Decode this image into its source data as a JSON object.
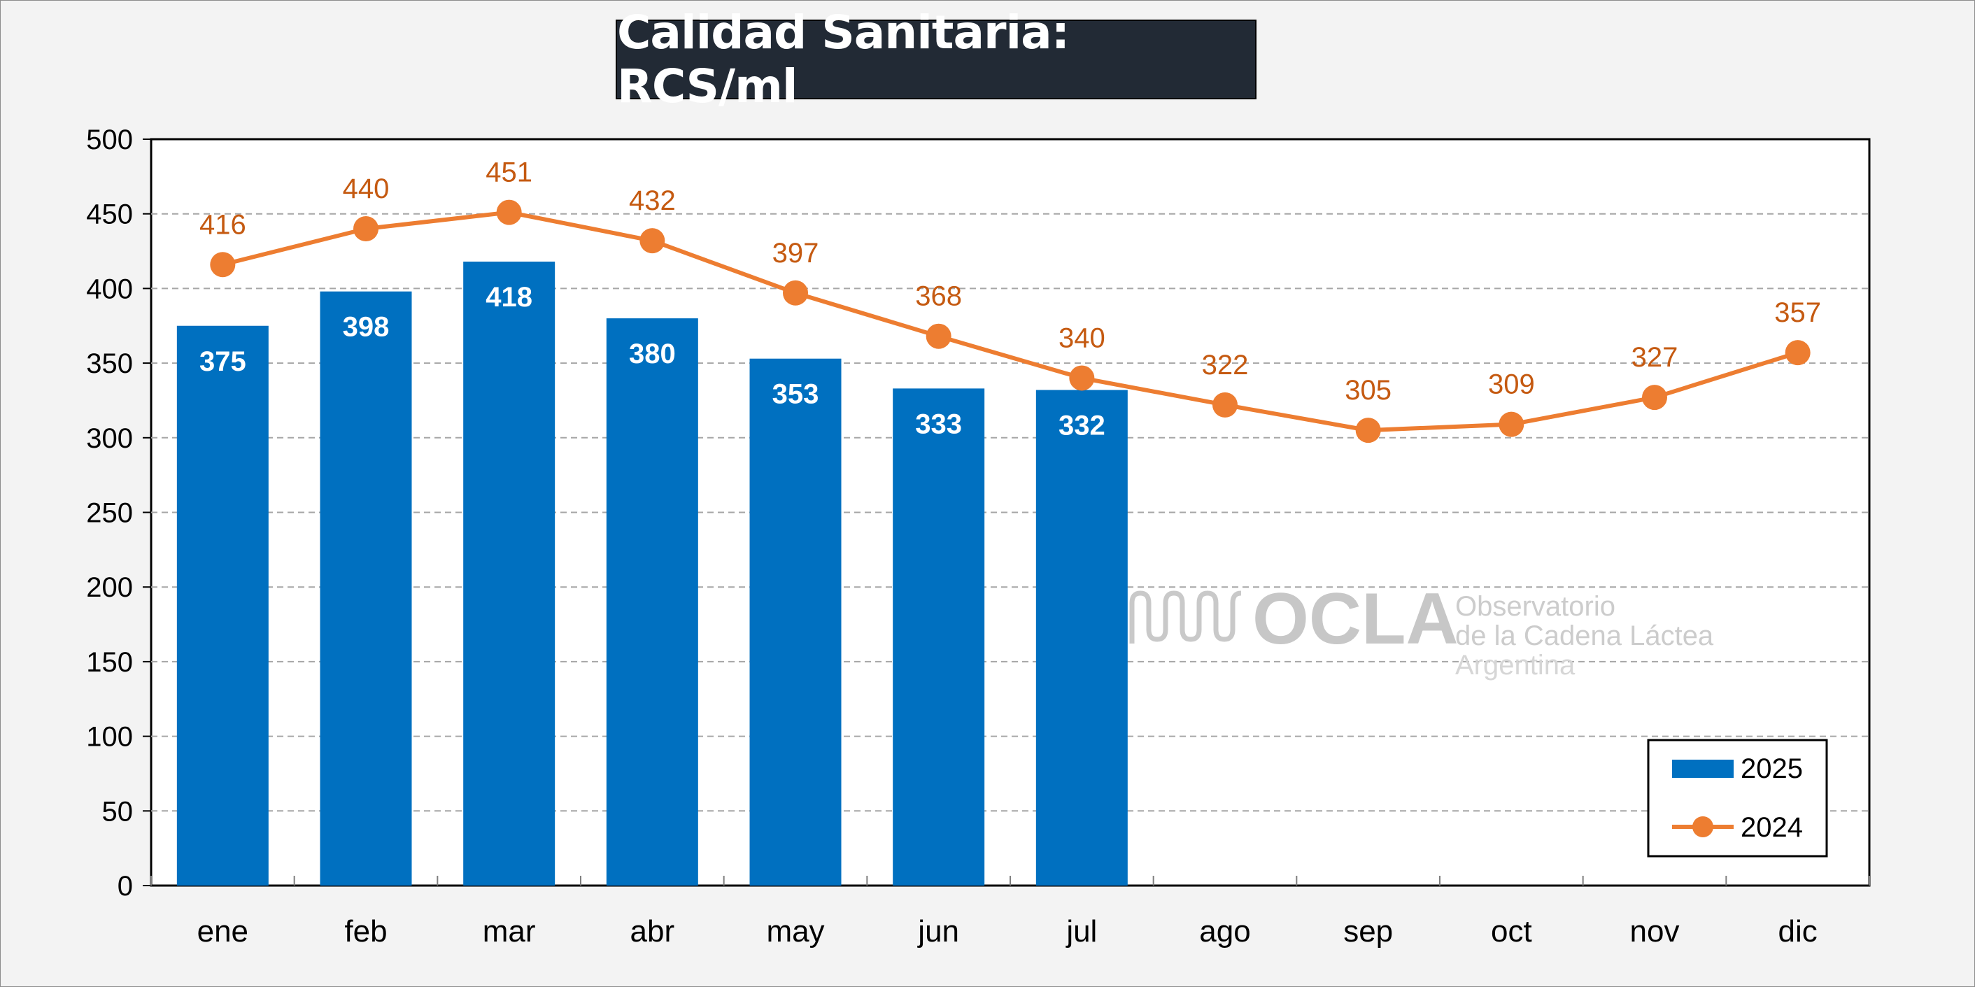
{
  "title": "Calidad Sanitaria: RCS/ml",
  "watermark": {
    "logo": "OCLA",
    "line1": "Observatorio",
    "line2": "de la Cadena Láctea",
    "line3": "Argentina"
  },
  "colors": {
    "bar": "#0070c0",
    "line": "#ed7d31",
    "line_label": "#c55a11",
    "bar_label": "#ffffff",
    "title_bg": "#222a35"
  },
  "chart_data": {
    "type": "bar",
    "title": "Calidad Sanitaria: RCS/ml",
    "categories": [
      "ene",
      "feb",
      "mar",
      "abr",
      "may",
      "jun",
      "jul",
      "ago",
      "sep",
      "oct",
      "nov",
      "dic"
    ],
    "series": [
      {
        "name": "2025",
        "type": "bar",
        "values": [
          375,
          398,
          418,
          380,
          353,
          333,
          332,
          null,
          null,
          null,
          null,
          null
        ]
      },
      {
        "name": "2024",
        "type": "line",
        "values": [
          416,
          440,
          451,
          432,
          397,
          368,
          340,
          322,
          305,
          309,
          327,
          357
        ]
      }
    ],
    "ylim": [
      0,
      500
    ],
    "yticks": [
      0,
      50,
      100,
      150,
      200,
      250,
      300,
      350,
      400,
      450,
      500
    ],
    "grid": true,
    "legend": "bottom-right",
    "xlabel": "",
    "ylabel": ""
  }
}
